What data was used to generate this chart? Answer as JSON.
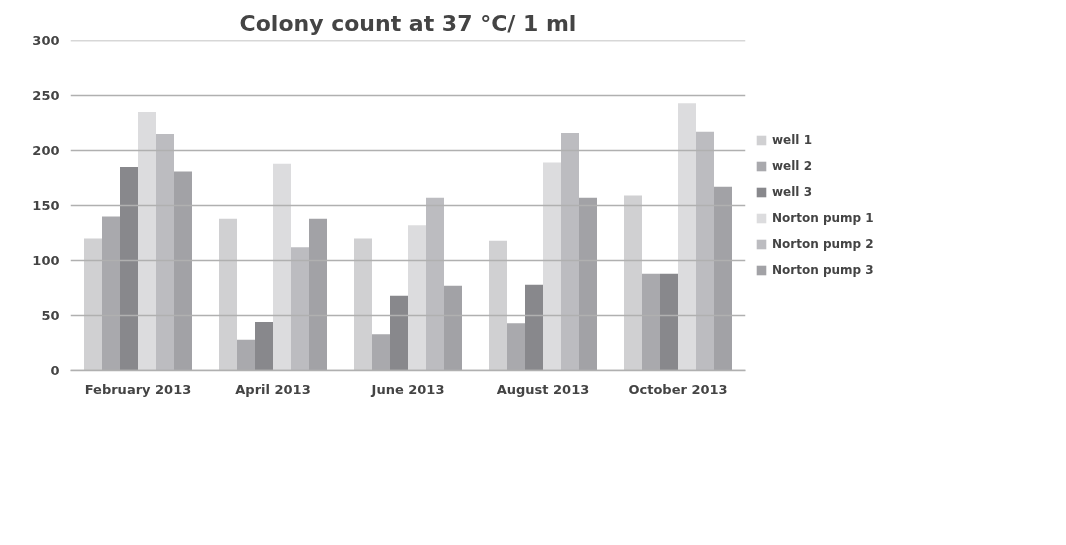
{
  "chart_data": {
    "type": "bar",
    "title": "Colony count at 37 °C/ 1 ml",
    "categories": [
      "February 2013",
      "April 2013",
      "June 2013",
      "August 2013",
      "October 2013"
    ],
    "series": [
      {
        "name": "well 1",
        "color": "#d0d0d2",
        "values": [
          120,
          138,
          120,
          118,
          159
        ]
      },
      {
        "name": "well 2",
        "color": "#a9a9ad",
        "values": [
          140,
          28,
          33,
          43,
          88
        ]
      },
      {
        "name": "well 3",
        "color": "#88888c",
        "values": [
          185,
          44,
          68,
          78,
          88
        ]
      },
      {
        "name": "Norton pump 1",
        "color": "#dcdcde",
        "values": [
          235,
          188,
          132,
          189,
          243
        ]
      },
      {
        "name": "Norton pump 2",
        "color": "#bcbcc0",
        "values": [
          215,
          112,
          157,
          216,
          217
        ]
      },
      {
        "name": "Norton pump 3",
        "color": "#a2a2a6",
        "values": [
          181,
          138,
          77,
          157,
          167
        ]
      }
    ],
    "ylim": [
      0,
      300
    ],
    "yticks": [
      0,
      50,
      100,
      150,
      200,
      250,
      300
    ],
    "grid": "y",
    "legend": "right"
  }
}
